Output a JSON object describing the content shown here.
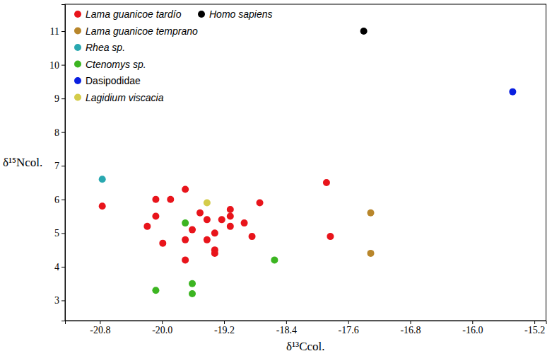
{
  "chart_data": {
    "type": "scatter",
    "x_label": "δ¹³Ccol.",
    "y_label": "δ¹⁵Ncol.",
    "xlim": [
      -21.25,
      -15.05
    ],
    "ylim": [
      2.4,
      11.8
    ],
    "xticks": [
      -20.8,
      {
        "value": -20,
        "label": "-20.0"
      },
      -19.2,
      -18.4,
      -17.6,
      -16.8,
      {
        "value": -16,
        "label": "-16.0"
      },
      -15.2
    ],
    "yticks": [
      3,
      4,
      5,
      6,
      7,
      8,
      9,
      10,
      11
    ],
    "grid": false,
    "legend": "upper left",
    "marker": "circle",
    "series": [
      {
        "name": "Lama guanicoe tardío",
        "color": "#e8141b",
        "x": [
          -20.77,
          -20.19,
          -20.08,
          -20.08,
          -19.89,
          -19.7,
          -19.99,
          -19.7,
          -19.7,
          -19.61,
          -19.51,
          -19.42,
          -19.42,
          -19.32,
          -19.32,
          -19.32,
          -19.23,
          -19.12,
          -19.12,
          -19.12,
          -18.94,
          -18.84,
          -18.74,
          -17.83,
          -17.88
        ],
        "y": [
          5.8,
          5.2,
          6.0,
          5.5,
          6.0,
          6.3,
          4.7,
          4.8,
          4.2,
          5.1,
          5.6,
          5.4,
          4.8,
          5.0,
          4.5,
          4.4,
          5.4,
          5.7,
          5.5,
          5.2,
          5.3,
          4.9,
          5.9,
          4.9,
          6.5
        ]
      },
      {
        "name": "Lama guanicoe temprano",
        "color": "#b8862b",
        "x": [
          -17.31,
          -17.31
        ],
        "y": [
          5.6,
          4.4
        ]
      },
      {
        "name": "Rhea sp.",
        "color": "#29a8b0",
        "x": [
          -20.77
        ],
        "y": [
          6.6
        ]
      },
      {
        "name": "Ctenomys sp.",
        "color": "#3cb521",
        "x": [
          -20.08,
          -19.7,
          -19.61,
          -19.61,
          -18.55
        ],
        "y": [
          3.3,
          5.3,
          3.5,
          3.2,
          4.2
        ]
      },
      {
        "name": "Dasipodidae",
        "color": "#0a1fe0",
        "x": [
          -15.48
        ],
        "y": [
          9.2
        ]
      },
      {
        "name": "Lagidium viscacia",
        "color": "#d4cc4a",
        "x": [
          -19.42
        ],
        "y": [
          5.9
        ]
      },
      {
        "name": "Homo sapiens",
        "color": "#000000",
        "x": [
          -17.4
        ],
        "y": [
          11.0
        ]
      }
    ]
  }
}
